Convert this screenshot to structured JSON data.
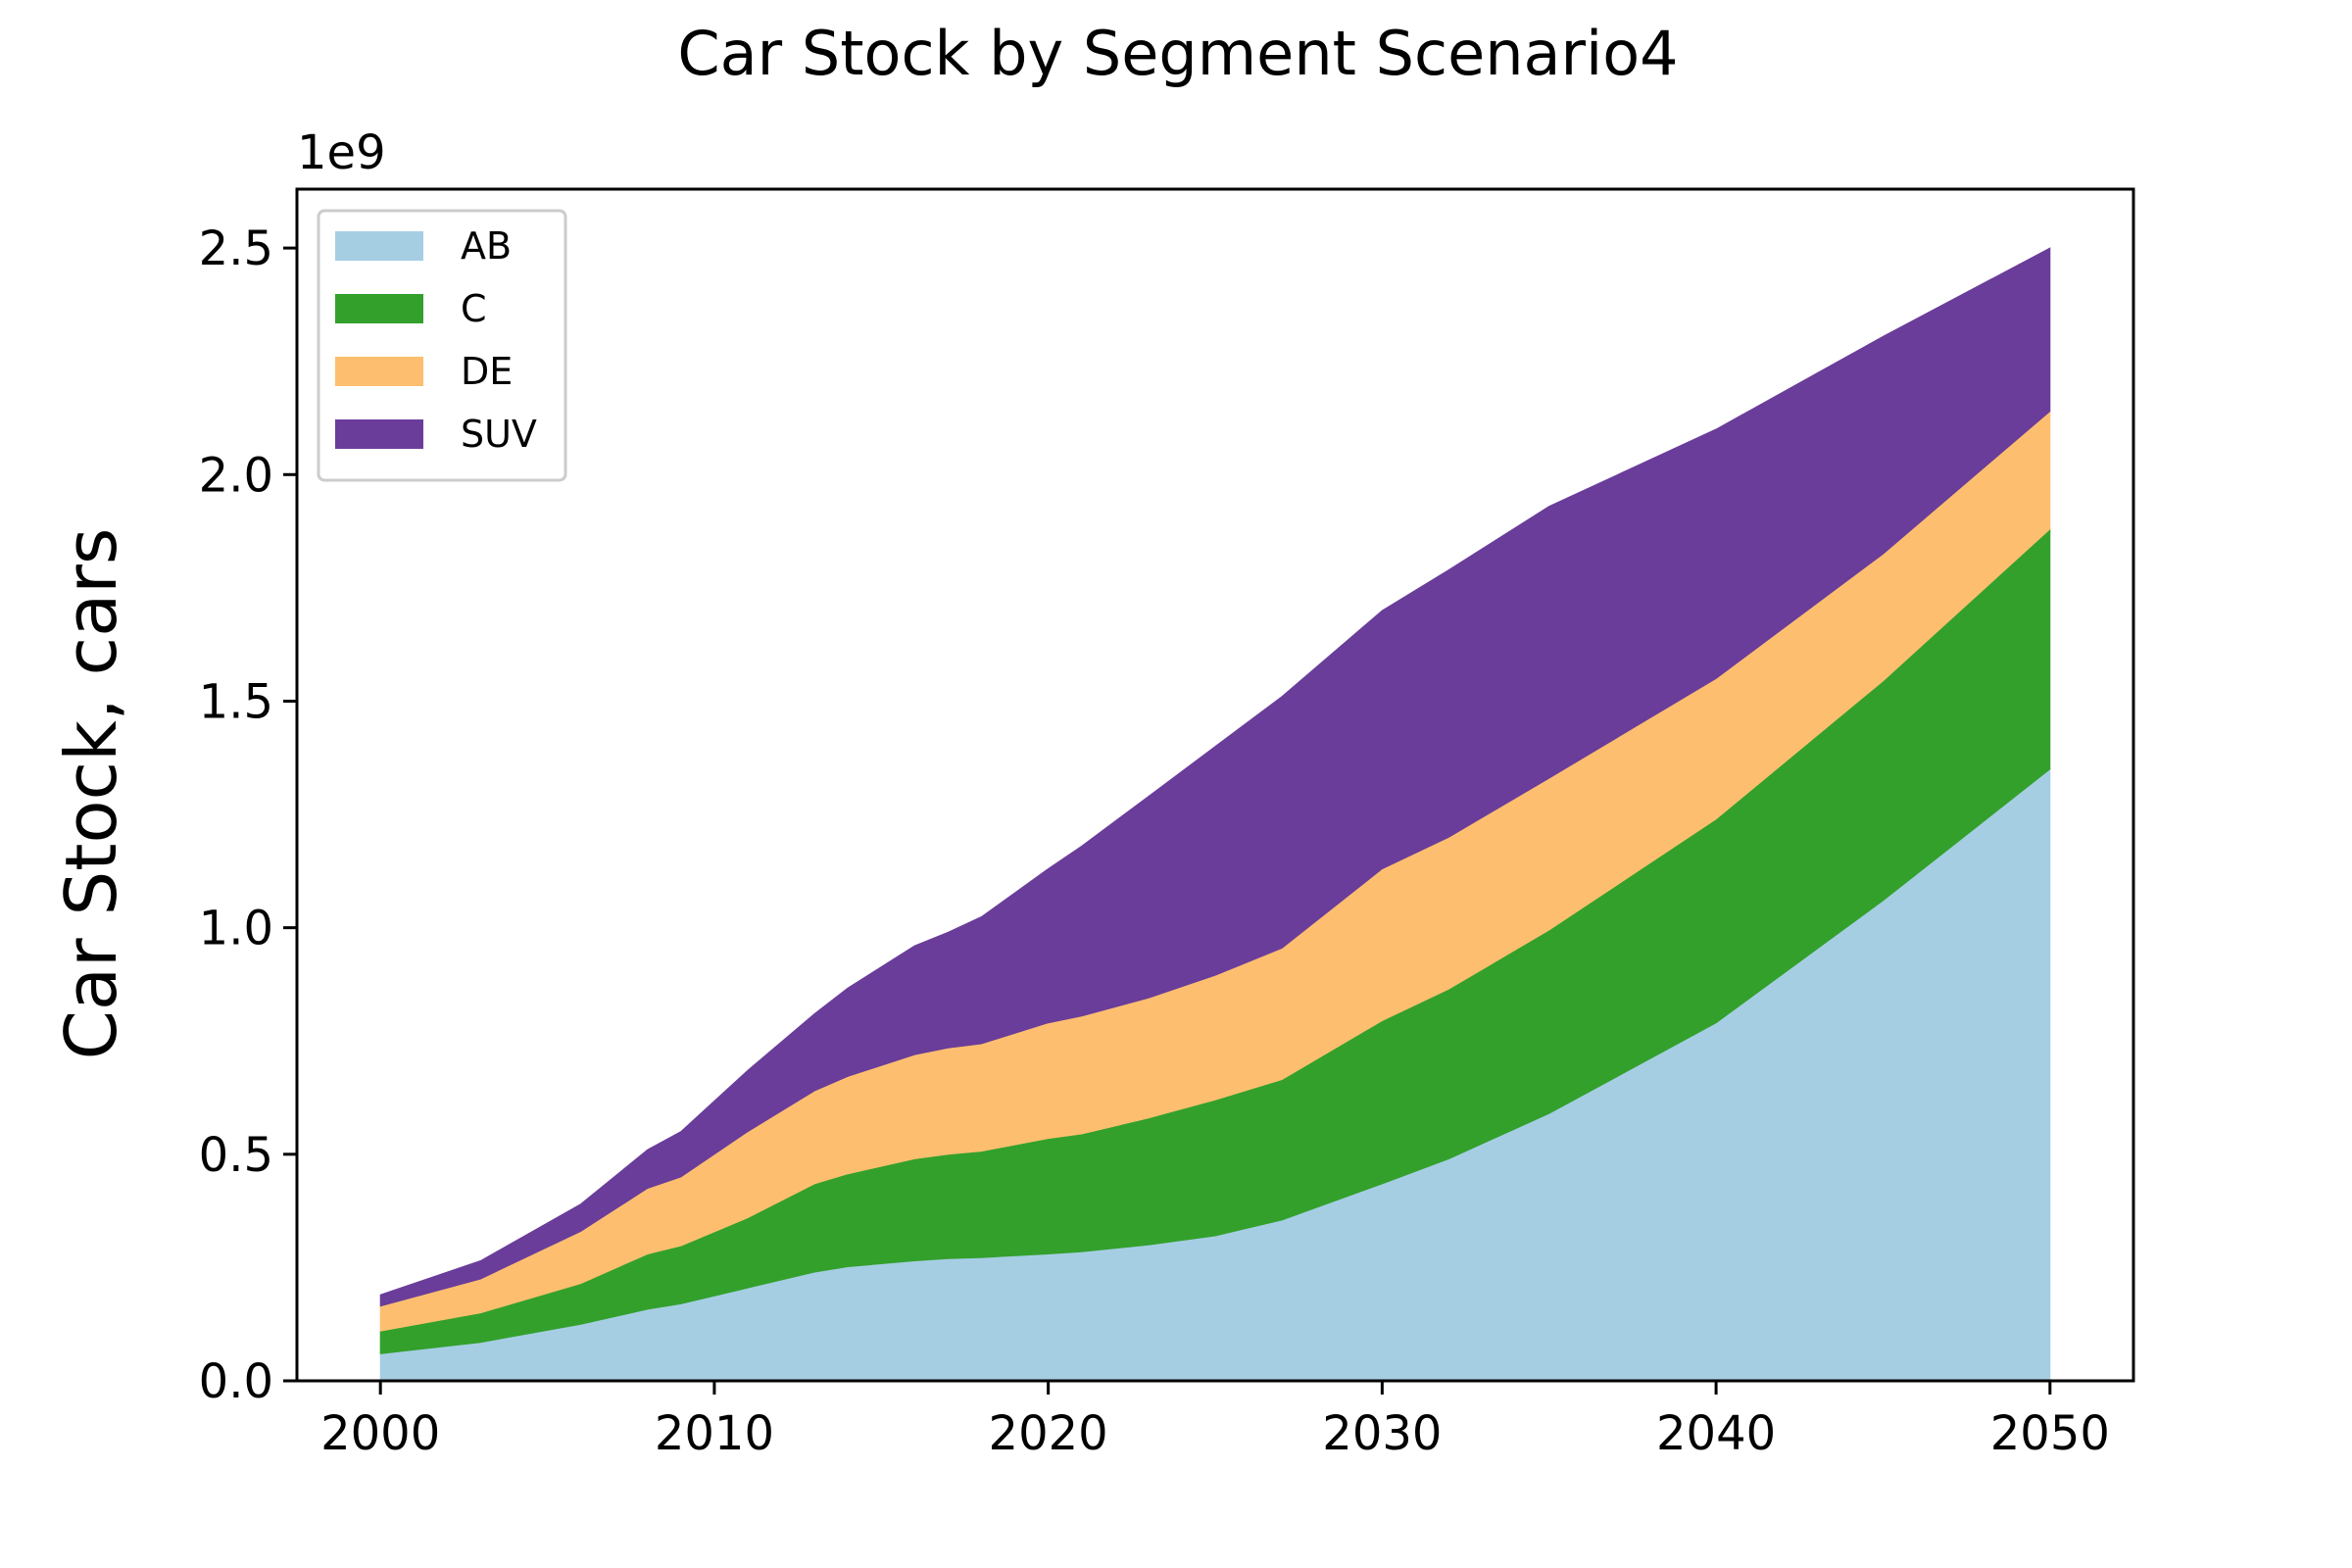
{
  "chart_data": {
    "type": "area",
    "stacked": true,
    "title": "Car Stock by Segment Scenario4",
    "ylabel": "Car Stock, cars",
    "xlabel": "",
    "y_offset_label": "1e9",
    "xlim": [
      1997.5,
      2052.5
    ],
    "ylim": [
      0,
      2.63
    ],
    "x_ticks": [
      2000,
      2010,
      2020,
      2030,
      2040,
      2050
    ],
    "x_tick_labels": [
      "2000",
      "2010",
      "2020",
      "2030",
      "2040",
      "2050"
    ],
    "y_ticks": [
      0.0,
      0.5,
      1.0,
      1.5,
      2.0,
      2.5
    ],
    "y_tick_labels": [
      "0.0",
      "0.5",
      "1.0",
      "1.5",
      "2.0",
      "2.5"
    ],
    "grid": false,
    "legend_position": "top-left",
    "x": [
      2000,
      2003,
      2006,
      2008,
      2009,
      2011,
      2013,
      2014,
      2016,
      2017,
      2018,
      2020,
      2021,
      2023,
      2025,
      2027,
      2030,
      2032,
      2035,
      2040,
      2045,
      2050
    ],
    "series": [
      {
        "name": "AB",
        "color": "#a6cee3",
        "values": [
          0.06,
          0.085,
          0.125,
          0.158,
          0.17,
          0.205,
          0.24,
          0.252,
          0.265,
          0.27,
          0.272,
          0.28,
          0.285,
          0.3,
          0.32,
          0.355,
          0.435,
          0.49,
          0.59,
          0.79,
          1.06,
          1.35
        ]
      },
      {
        "name": "C",
        "color": "#33a02c",
        "values": [
          0.05,
          0.065,
          0.09,
          0.122,
          0.128,
          0.155,
          0.195,
          0.205,
          0.225,
          0.23,
          0.235,
          0.255,
          0.26,
          0.28,
          0.3,
          0.31,
          0.36,
          0.375,
          0.405,
          0.45,
          0.485,
          0.53
        ]
      },
      {
        "name": "DE",
        "color": "#fdbf6f",
        "values": [
          0.055,
          0.075,
          0.115,
          0.145,
          0.152,
          0.19,
          0.205,
          0.215,
          0.23,
          0.235,
          0.237,
          0.255,
          0.26,
          0.265,
          0.275,
          0.29,
          0.335,
          0.335,
          0.335,
          0.31,
          0.28,
          0.26
        ]
      },
      {
        "name": "SUV",
        "color": "#6a3d9a",
        "values": [
          0.025,
          0.04,
          0.06,
          0.085,
          0.1,
          0.135,
          0.17,
          0.195,
          0.24,
          0.255,
          0.28,
          0.34,
          0.375,
          0.445,
          0.505,
          0.555,
          0.57,
          0.59,
          0.6,
          0.55,
          0.48,
          0.36
        ]
      }
    ]
  }
}
